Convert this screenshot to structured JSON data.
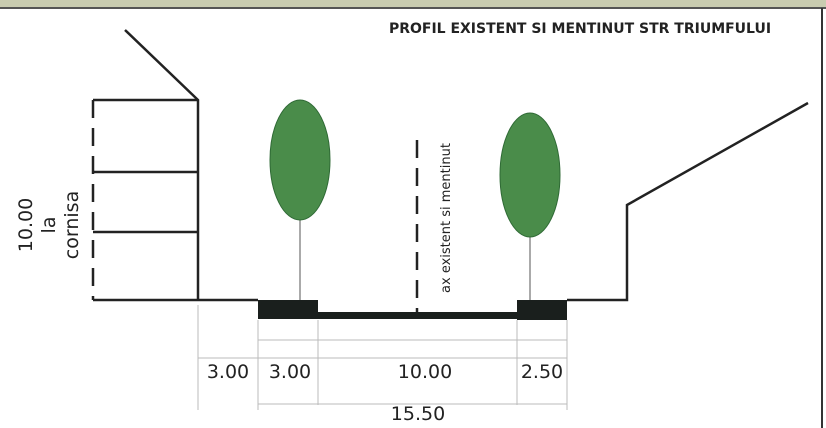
{
  "title": "PROFIL EXISTENT SI MENTINUT STR TRIUMFULUI",
  "height_label": {
    "value": "10.00",
    "line2": "la",
    "line3": "cornisa"
  },
  "axis_label": "ax existent si mentinut",
  "dimensions": [
    "3.00",
    "3.00",
    "10.00",
    "2.50"
  ],
  "total_width": "15.50"
}
